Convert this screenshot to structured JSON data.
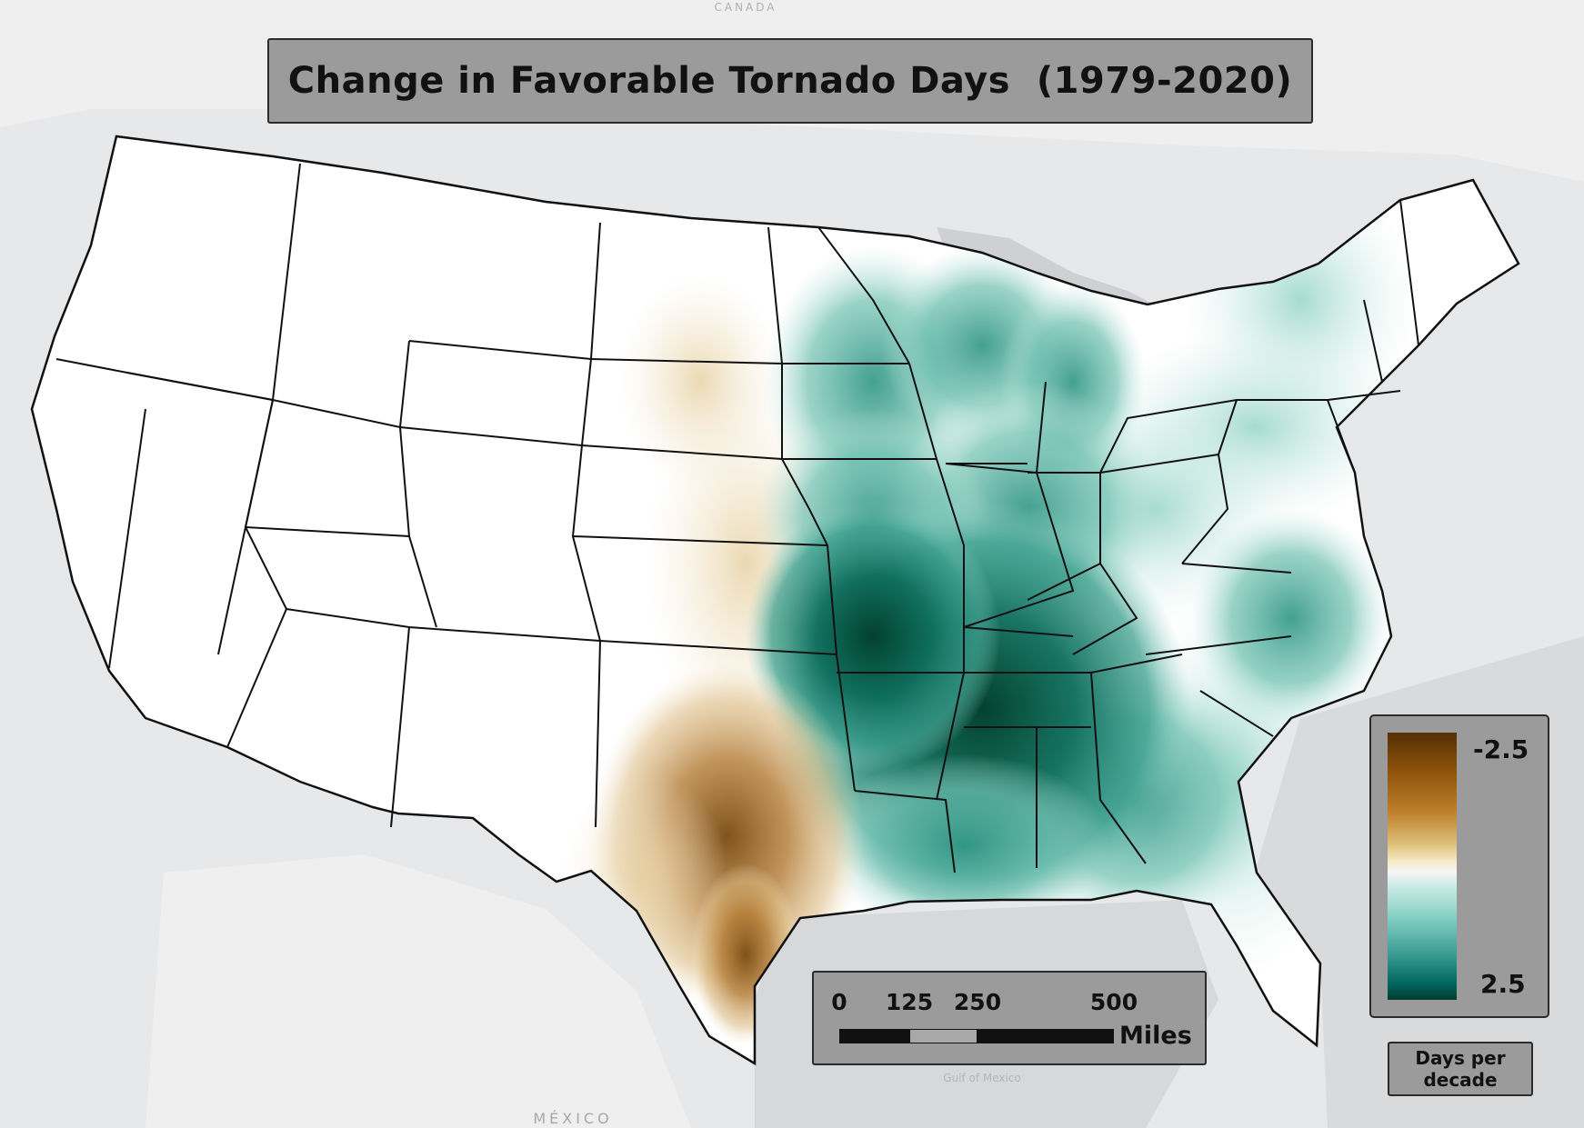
{
  "map": {
    "title": "Change in Favorable Tornado Days  (1979-2020)",
    "background_labels": {
      "canada": "CANADA",
      "mexico": "MÉXICO",
      "gulf": "Gulf of Mexico"
    },
    "colors": {
      "land_base": "#ffffff",
      "outside_land": "#f2f2f2",
      "water": "#d9d9db",
      "panel": "#9b9b9b",
      "decrease_strong": "#7a4b12",
      "decrease_mid": "#c79650",
      "decrease_light": "#ead3a6",
      "increase_light": "#b7e2d6",
      "increase_mid": "#3a9f8d",
      "increase_strong": "#03503f"
    }
  },
  "legend": {
    "max_label": "-2.5",
    "min_label": "2.5",
    "units_line1": "Days per",
    "units_line2": "decade",
    "range": [
      -2.5,
      2.5
    ]
  },
  "scale_bar": {
    "ticks": [
      "0",
      "125",
      "250",
      "500"
    ],
    "unit": "Miles"
  }
}
